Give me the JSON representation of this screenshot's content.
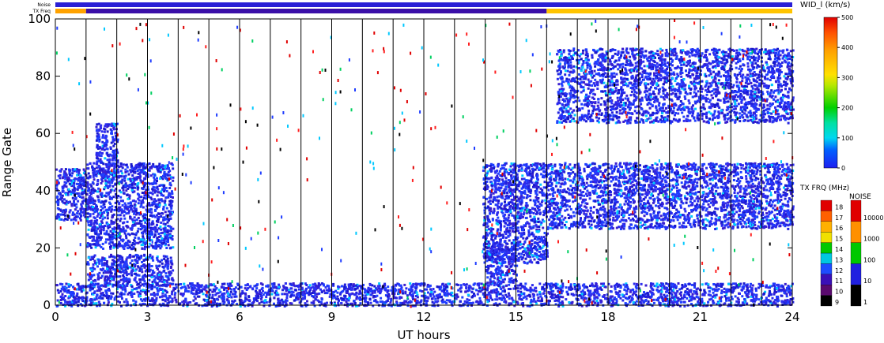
{
  "chart_data": {
    "type": "heatmap",
    "xlabel": "UT hours",
    "ylabel": "Range Gate",
    "xlim": [
      0,
      24
    ],
    "ylim": [
      0,
      100
    ],
    "xticks": [
      "0",
      "3",
      "6",
      "9",
      "12",
      "15",
      "18",
      "21",
      "24"
    ],
    "xtick_values": [
      0,
      3,
      6,
      9,
      12,
      15,
      18,
      21,
      24
    ],
    "yticks": [
      "0",
      "20",
      "40",
      "60",
      "80",
      "100"
    ],
    "ytick_values": [
      0,
      20,
      40,
      60,
      80,
      100
    ],
    "hour_gridlines": [
      1,
      2,
      3,
      4,
      5,
      6,
      7,
      8,
      9,
      10,
      11,
      12,
      13,
      14,
      15,
      16,
      17,
      18,
      19,
      20,
      21,
      22,
      23
    ],
    "top_bars": {
      "noise_label": "Noise",
      "txfreq_label": "TX Freq",
      "noise_color": "#2a1fd6",
      "txfreq_segments": [
        {
          "start": 0,
          "end": 1,
          "color": "#ffa200"
        },
        {
          "start": 1,
          "end": 16,
          "color": "#3a0fa8"
        },
        {
          "start": 16,
          "end": 24,
          "color": "#ffc400"
        }
      ]
    },
    "scatter_bands": [
      {
        "x0": 0,
        "x1": 1,
        "y0": 30,
        "y1": 48
      },
      {
        "x0": 1,
        "x1": 3.8,
        "y0": 20,
        "y1": 50
      },
      {
        "x0": 1,
        "x1": 3.8,
        "y0": 7,
        "y1": 18
      },
      {
        "x0": 1.3,
        "x1": 2,
        "y0": 45,
        "y1": 64
      },
      {
        "x0": 0,
        "x1": 24,
        "y0": 0,
        "y1": 8
      },
      {
        "x0": 13.9,
        "x1": 16,
        "y0": 15,
        "y1": 50
      },
      {
        "x0": 14,
        "x1": 15,
        "y0": 8,
        "y1": 22
      },
      {
        "x0": 16,
        "x1": 24,
        "y0": 27,
        "y1": 50
      },
      {
        "x0": 16.3,
        "x1": 24,
        "y0": 64,
        "y1": 90
      }
    ],
    "velocity_colorbar": {
      "title": "WID_l (km/s)",
      "min": 0,
      "max": 500,
      "ticks": [
        "0",
        "100",
        "200",
        "300",
        "400",
        "500"
      ],
      "tick_values": [
        0,
        100,
        200,
        300,
        400,
        500
      ]
    },
    "txfreq_colorbar": {
      "title": "TX FRQ (MHz)",
      "ticks": [
        "9",
        "10",
        "11",
        "12",
        "13",
        "14",
        "15",
        "16",
        "17",
        "18"
      ],
      "colors": [
        "#000000",
        "#5a0a6e",
        "#3a10b8",
        "#1e4cff",
        "#00c8e0",
        "#00c800",
        "#f0e000",
        "#ffb000",
        "#ff6000",
        "#e00000"
      ]
    },
    "noise_colorbar": {
      "title": "NOISE",
      "ticks": [
        "1",
        "10",
        "100",
        "1000",
        "10000"
      ],
      "colors": [
        "#000000",
        "#2020e0",
        "#00c800",
        "#ff9000",
        "#e00000"
      ]
    }
  }
}
